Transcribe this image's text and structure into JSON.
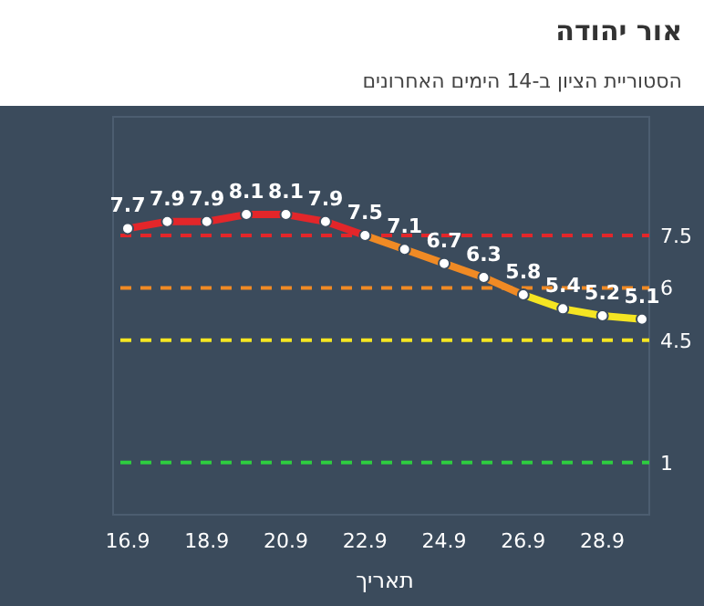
{
  "chart_data": {
    "type": "line",
    "title": "אור יהודה",
    "subtitle": "הסטוריית הציון ב-14 הימים האחרונים",
    "xlabel": "תאריך",
    "categories": [
      "16.9",
      null,
      "18.9",
      null,
      "20.9",
      null,
      "22.9",
      null,
      "24.9",
      null,
      "26.9",
      null,
      "28.9",
      null
    ],
    "series": [
      {
        "values": [
          7.7,
          7.9,
          7.9,
          8.1,
          8.1,
          7.9,
          7.5,
          7.1,
          6.7,
          6.3,
          5.8,
          5.4,
          5.2,
          5.1
        ],
        "colors": [
          "#e3262a",
          "#e3262a",
          "#e3262a",
          "#e3262a",
          "#e3262a",
          "#e3262a",
          "#f08a24",
          "#f08a24",
          "#f08a24",
          "#f08a24",
          "#f5e522",
          "#f5e522",
          "#f5e522",
          "#f5e522"
        ]
      }
    ],
    "ylim": [
      -0.5,
      10.9
    ],
    "tick_labels": "x",
    "marker": "circle",
    "data_labels": true,
    "ref_lines": [
      {
        "axis": "y",
        "value": 7.5,
        "label": "7.5",
        "color": "#e3262a",
        "line_style": "dashed"
      },
      {
        "axis": "y",
        "value": 6,
        "label": "6",
        "color": "#f08a24",
        "line_style": "dashed"
      },
      {
        "axis": "y",
        "value": 4.5,
        "label": "4.5",
        "color": "#f5e522",
        "line_style": "dashed"
      },
      {
        "axis": "y",
        "value": 1,
        "label": "1",
        "color": "#2ecc40",
        "line_style": "dashed"
      }
    ]
  }
}
